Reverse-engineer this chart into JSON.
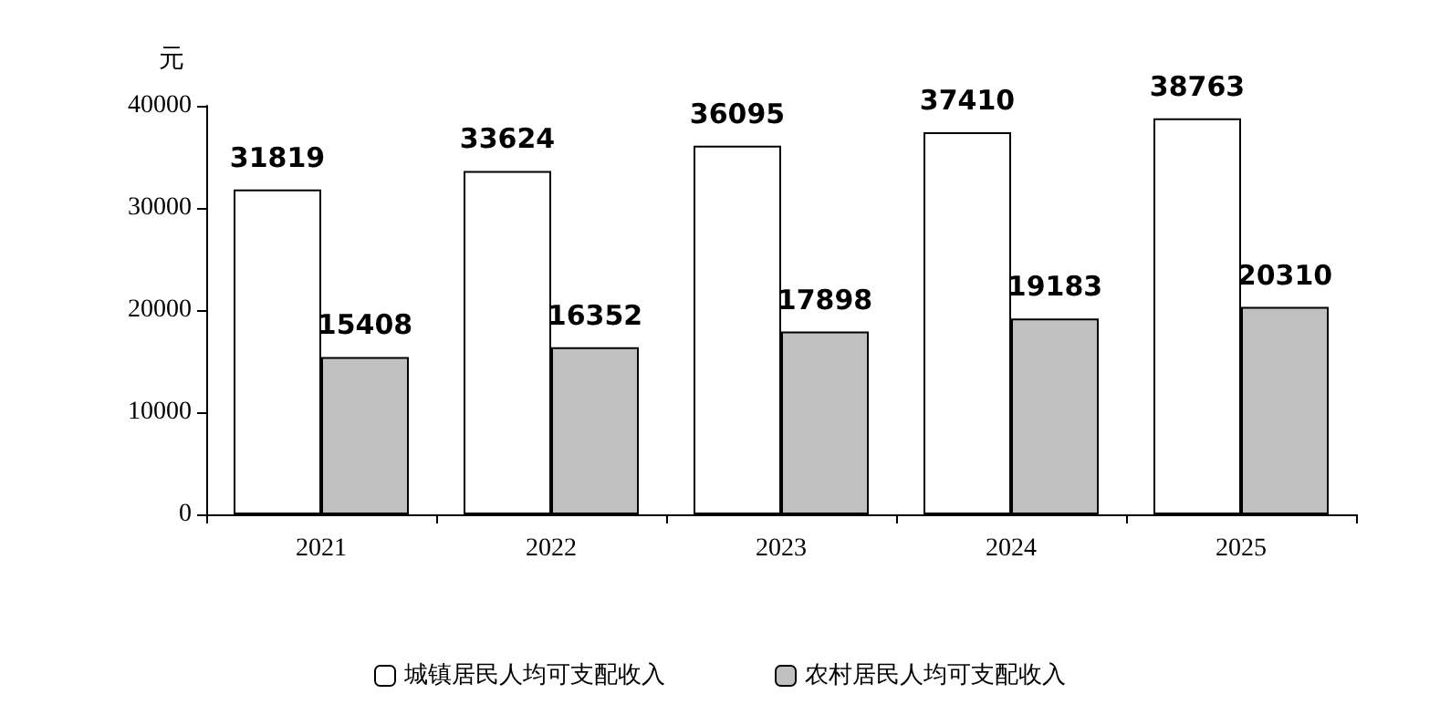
{
  "chart_data": {
    "type": "bar",
    "ylabel": "元",
    "categories": [
      "2021",
      "2022",
      "2023",
      "2024",
      "2025"
    ],
    "series": [
      {
        "name": "城镇居民人均可支配收入",
        "color": "#ffffff",
        "values": [
          31819,
          33624,
          36095,
          37410,
          38763
        ]
      },
      {
        "name": "农村居民人均可支配收入",
        "color": "#c0c0c0",
        "values": [
          15408,
          16352,
          17898,
          19183,
          20310
        ]
      }
    ],
    "ylim": [
      0,
      40000
    ],
    "yticks": [
      0,
      10000,
      20000,
      30000,
      40000
    ],
    "grid": false,
    "legend": "bottom",
    "data_labels": true
  }
}
